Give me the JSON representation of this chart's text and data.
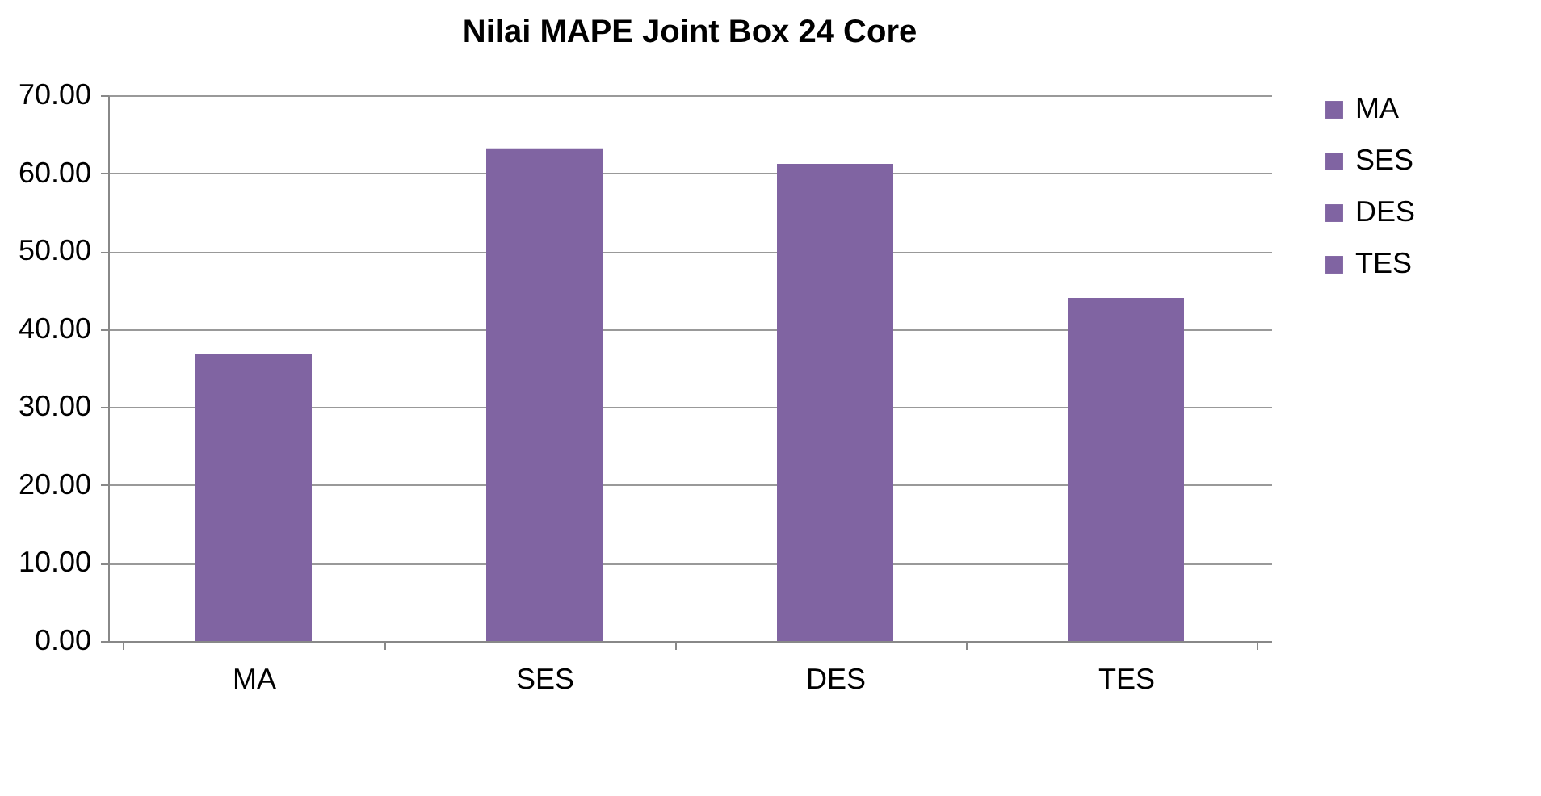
{
  "chart_data": {
    "type": "bar",
    "title": "Nilai MAPE Joint Box 24 Core",
    "categories": [
      "MA",
      "SES",
      "DES",
      "TES"
    ],
    "series": [
      {
        "name": "MA",
        "color": "#8064a2",
        "values": [
          36.8,
          null,
          null,
          null
        ]
      },
      {
        "name": "SES",
        "color": "#8064a2",
        "values": [
          null,
          63.2,
          null,
          null
        ]
      },
      {
        "name": "DES",
        "color": "#8064a2",
        "values": [
          null,
          null,
          61.2,
          null
        ]
      },
      {
        "name": "TES",
        "color": "#8064a2",
        "values": [
          null,
          null,
          null,
          44.0
        ]
      }
    ],
    "stacked": true,
    "ylim": [
      0,
      70
    ],
    "yticks": [
      {
        "value": 0,
        "label": "0.00"
      },
      {
        "value": 10,
        "label": "10.00"
      },
      {
        "value": 20,
        "label": "20.00"
      },
      {
        "value": 30,
        "label": "30.00"
      },
      {
        "value": 40,
        "label": "40.00"
      },
      {
        "value": 50,
        "label": "50.00"
      },
      {
        "value": 60,
        "label": "60.00"
      },
      {
        "value": 70,
        "label": "70.00"
      }
    ],
    "grid": "y",
    "legend": "right"
  }
}
